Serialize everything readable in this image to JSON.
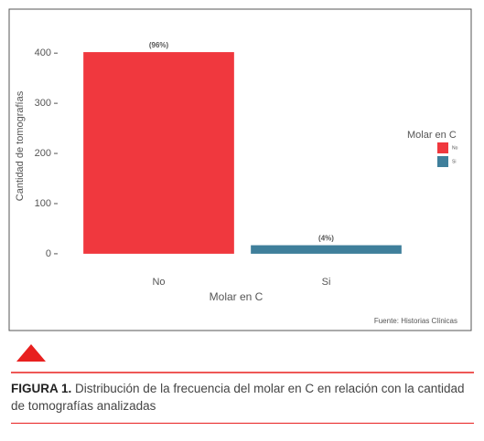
{
  "chart_data": {
    "type": "bar",
    "categories": [
      "No",
      "Si"
    ],
    "values": [
      402,
      17
    ],
    "value_labels": [
      "(96%)",
      "(4%)"
    ],
    "colors": [
      "#f0383e",
      "#3f7f9b"
    ],
    "xlabel": "Molar en C",
    "ylabel": "Cantidad de tomografías",
    "ylim": [
      -22,
      424
    ],
    "yticks": [
      0,
      100,
      200,
      300,
      400
    ],
    "legend_title": "Molar en C",
    "legend": "right",
    "source": "Fuente: Historias Clínicas"
  },
  "figure": {
    "label": "FIGURA 1.",
    "text": "Distribución de la frecuencia del molar en C en relación con la cantidad de tomografías analizadas"
  }
}
